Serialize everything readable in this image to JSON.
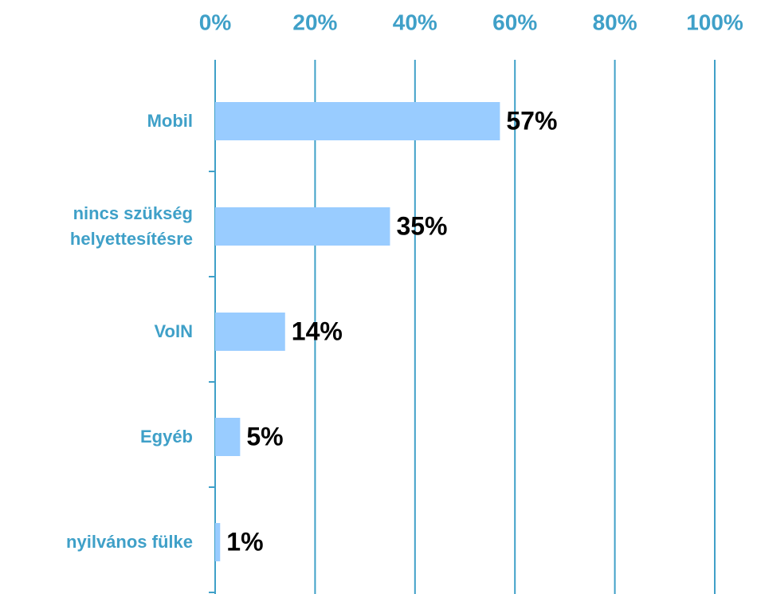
{
  "chart_data": {
    "type": "bar",
    "orientation": "horizontal",
    "categories": [
      "Mobil",
      "nincs szükség\nhelyettesítésre",
      "VoIN",
      "Egyéb",
      "nyilvános fülke"
    ],
    "values": [
      57,
      35,
      14,
      5,
      1
    ],
    "value_labels": [
      "57%",
      "35%",
      "14%",
      "5%",
      "1%"
    ],
    "color": "#99ccff",
    "xlim": [
      0,
      100
    ],
    "xticks": [
      {
        "value": 0,
        "label": "0%"
      },
      {
        "value": 20,
        "label": "20%"
      },
      {
        "value": 40,
        "label": "40%"
      },
      {
        "value": 60,
        "label": "60%"
      },
      {
        "value": 80,
        "label": "80%"
      },
      {
        "value": 100,
        "label": "100%"
      }
    ],
    "grid": true
  }
}
